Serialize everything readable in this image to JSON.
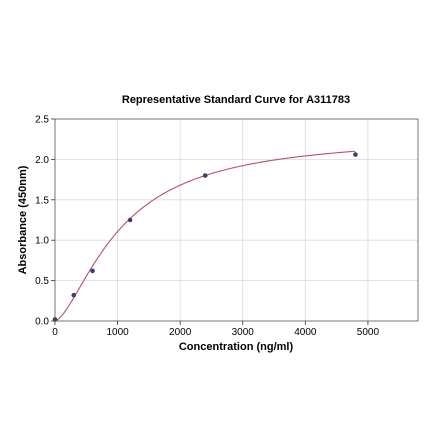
{
  "chart_data": {
    "type": "scatter",
    "title": "Representative Standard Curve for A311783",
    "xlabel": "Concentration (ng/ml)",
    "ylabel": "Absorbance (450nm)",
    "xlim": [
      0,
      5800
    ],
    "ylim": [
      0,
      2.5
    ],
    "xticks": [
      0,
      1000,
      2000,
      3000,
      4000,
      5000
    ],
    "yticks": [
      0.0,
      0.5,
      1.0,
      1.5,
      2.0,
      2.5
    ],
    "xtick_labels": [
      "0",
      "1000",
      "2000",
      "3000",
      "4000",
      "5000"
    ],
    "ytick_labels": [
      "0.0",
      "0.5",
      "1.0",
      "1.5",
      "2.0",
      "2.5"
    ],
    "grid": true,
    "points": [
      {
        "x": 0,
        "y": 0.02
      },
      {
        "x": 300,
        "y": 0.32
      },
      {
        "x": 600,
        "y": 0.62
      },
      {
        "x": 1200,
        "y": 1.25
      },
      {
        "x": 2400,
        "y": 1.8
      },
      {
        "x": 4800,
        "y": 2.06
      }
    ],
    "fit_curve": {
      "type": "4PL",
      "bottom": 0.0,
      "top": 2.3,
      "ec50": 1050,
      "hill": 1.55,
      "x_range": [
        0,
        4800
      ]
    },
    "colors": {
      "points": "#3d3d6b",
      "curve": "#b8506a"
    }
  }
}
